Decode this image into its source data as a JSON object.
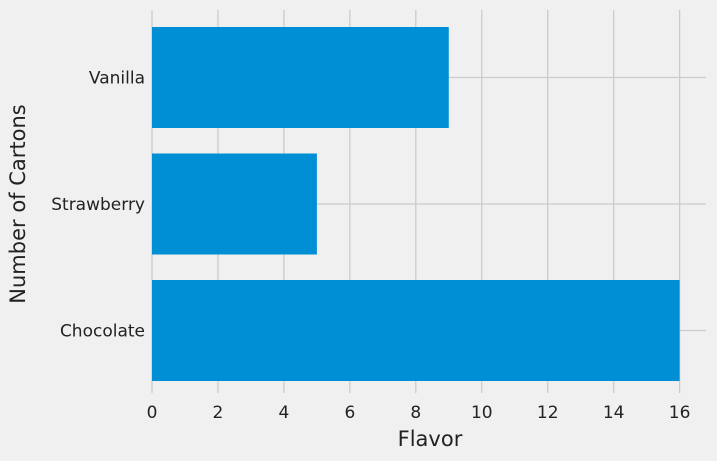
{
  "chart_data": {
    "type": "bar",
    "orientation": "horizontal",
    "categories": [
      "Chocolate",
      "Strawberry",
      "Vanilla"
    ],
    "values": [
      16,
      5,
      9
    ],
    "title": "",
    "xlabel": "Flavor",
    "ylabel": "Number of Cartons",
    "xlim": [
      0,
      16.8
    ],
    "xticks": [
      0,
      2,
      4,
      6,
      8,
      10,
      12,
      14,
      16
    ],
    "grid": true,
    "legend": "none",
    "bar_color": "#008fd5",
    "background_color": "#f0f0f0",
    "grid_color": "#cbcbcb"
  }
}
